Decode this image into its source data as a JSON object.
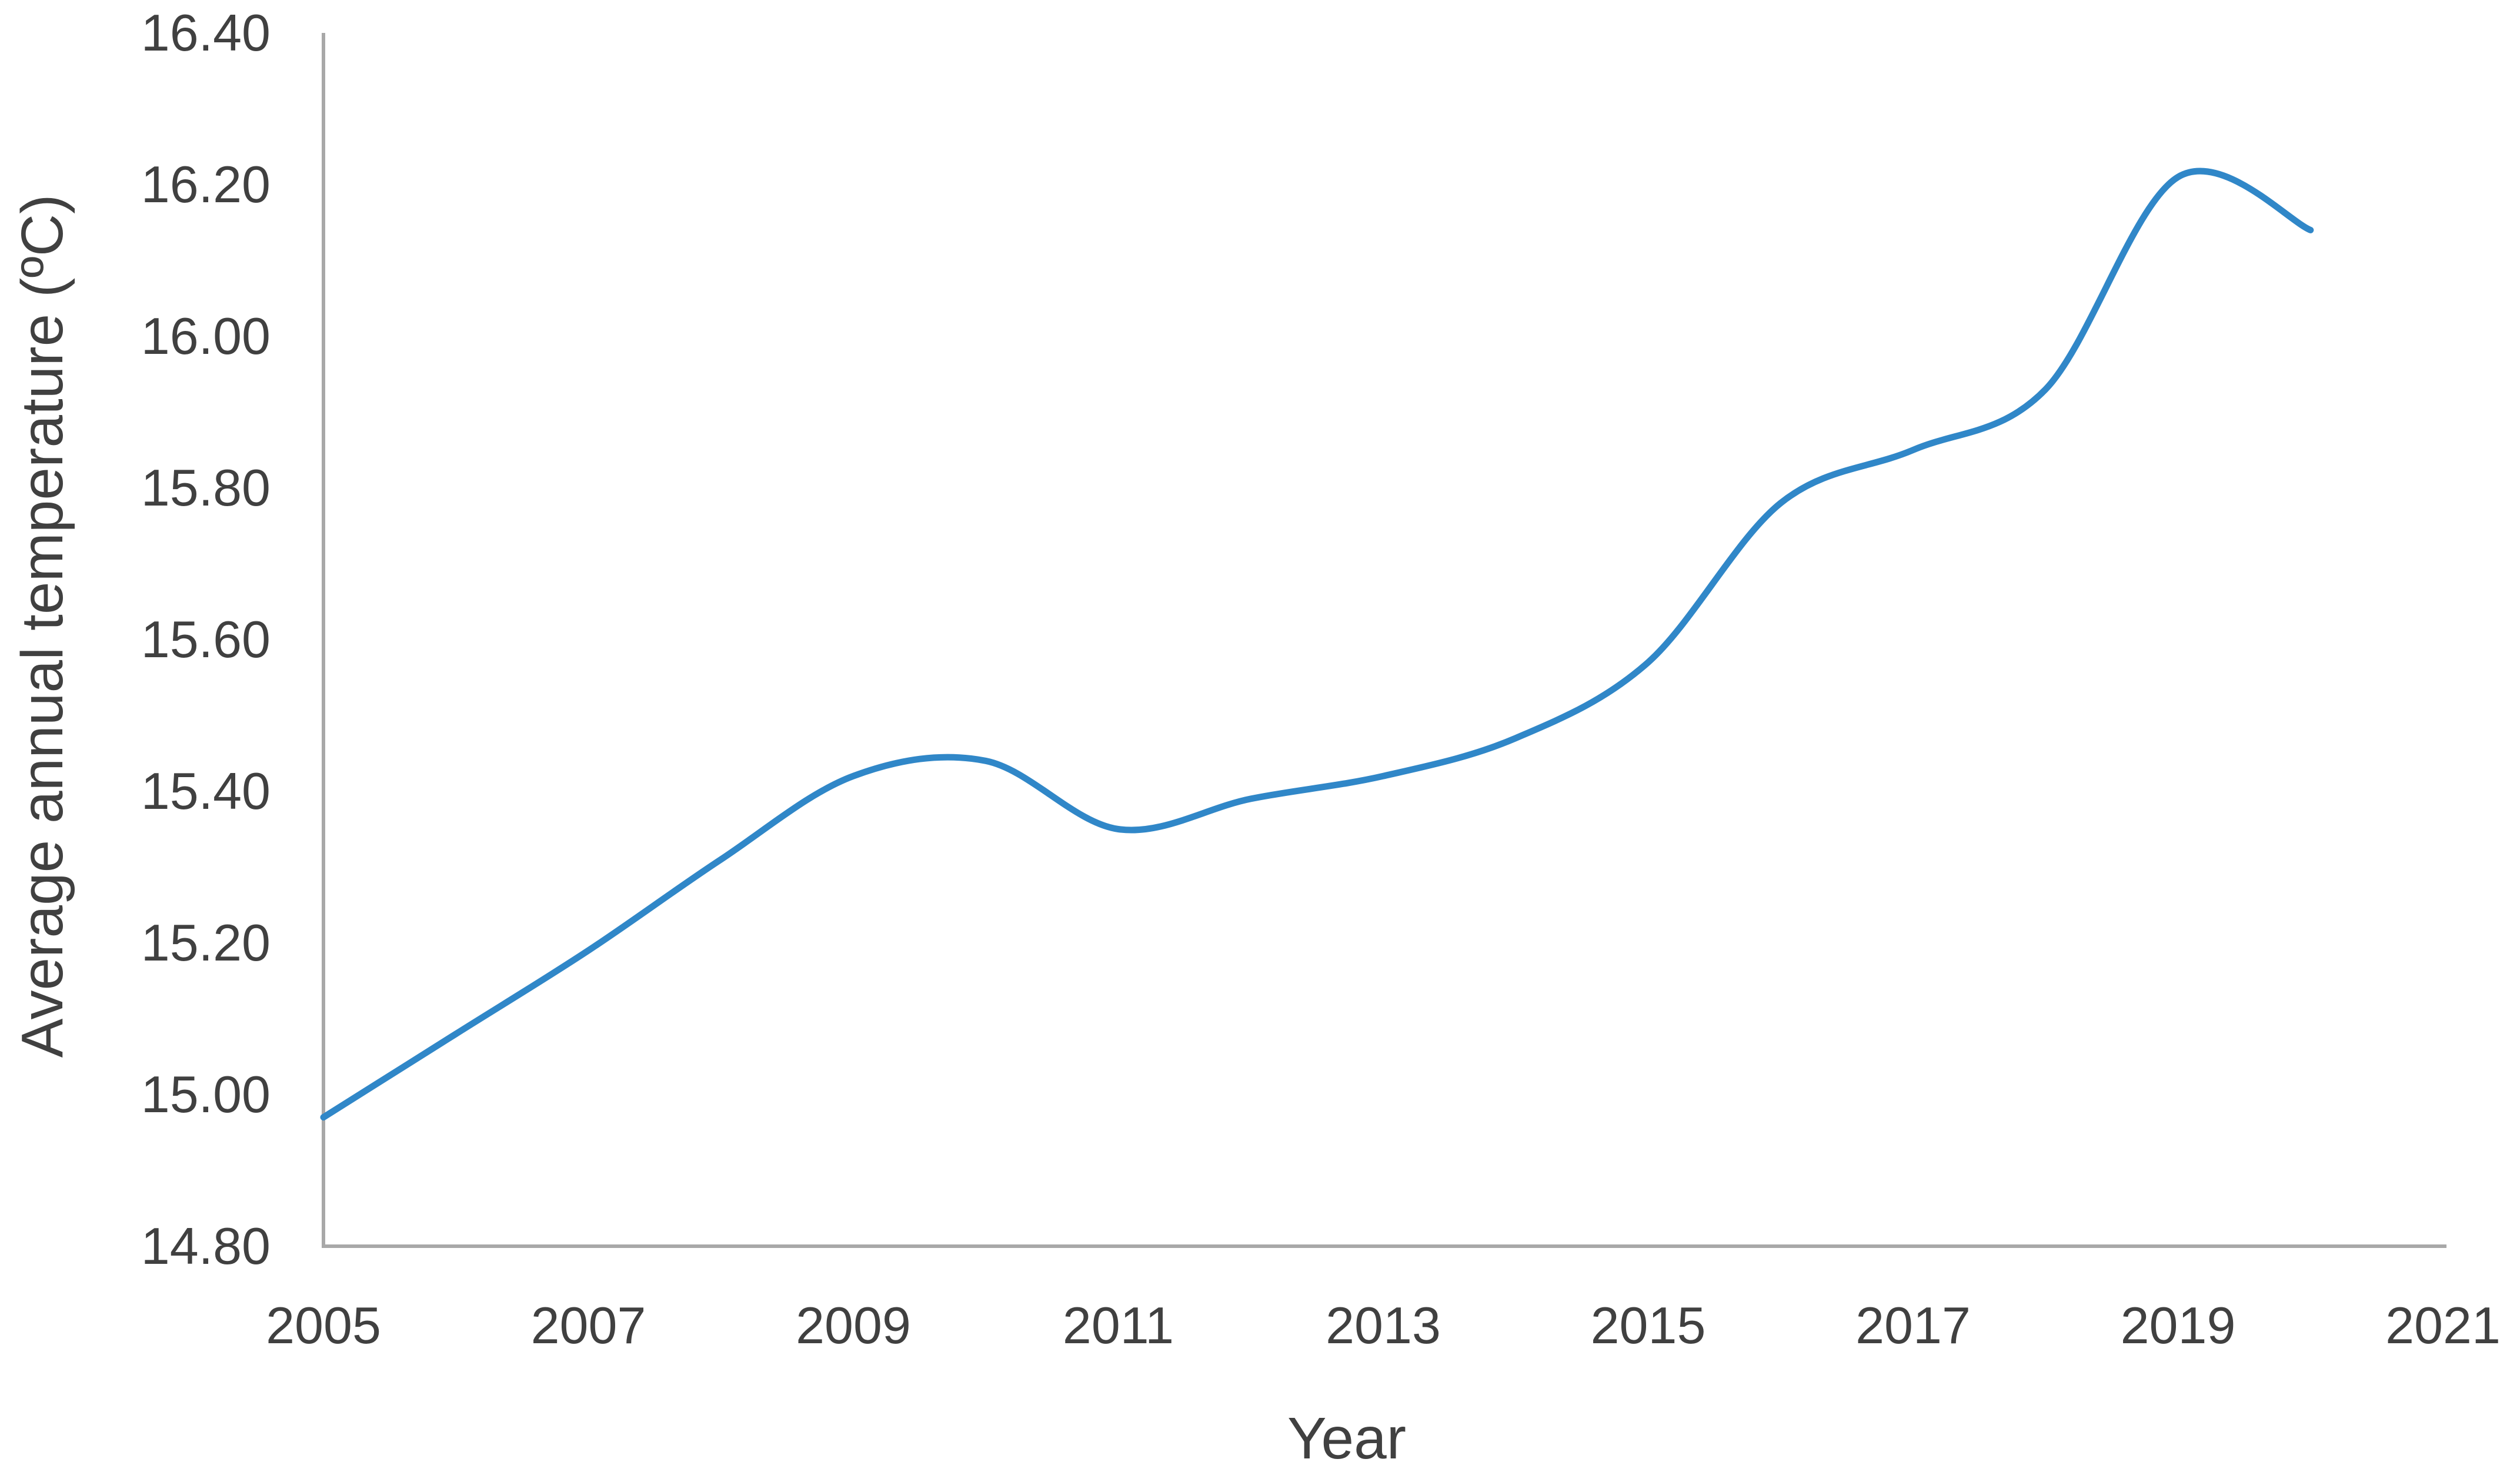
{
  "chart_data": {
    "type": "line",
    "title": "",
    "xlabel": "Year",
    "ylabel": "Average annual temperature (ºC)",
    "x": [
      2005,
      2006,
      2007,
      2008,
      2009,
      2010,
      2011,
      2012,
      2013,
      2014,
      2015,
      2016,
      2017,
      2018,
      2019,
      2020
    ],
    "series": [
      {
        "name": "Average annual temperature (ºC)",
        "values": [
          14.97,
          15.08,
          15.19,
          15.31,
          15.42,
          15.44,
          15.35,
          15.39,
          15.42,
          15.47,
          15.57,
          15.78,
          15.85,
          15.93,
          16.21,
          16.14
        ]
      }
    ],
    "xlim": [
      2005,
      2021
    ],
    "ylim": [
      14.8,
      16.4
    ],
    "x_tick_labels": [
      "2005",
      "2007",
      "2009",
      "2011",
      "2013",
      "2015",
      "2017",
      "2019",
      "2021"
    ],
    "x_tick_values": [
      2005,
      2007,
      2009,
      2011,
      2013,
      2015,
      2017,
      2019,
      2021
    ],
    "y_tick_labels": [
      "16.40",
      "16.20",
      "16.00",
      "15.80",
      "15.60",
      "15.40",
      "15.20",
      "15.00",
      "14.80"
    ],
    "y_tick_values": [
      16.4,
      16.2,
      16.0,
      15.8,
      15.6,
      15.4,
      15.2,
      15.0,
      14.8
    ],
    "grid": "off",
    "legend": "none",
    "smooth": true,
    "line_color": "#3087C8",
    "axis_color": "#A8A8A8",
    "text_color": "#404040",
    "background_color": "#FFFFFF"
  }
}
